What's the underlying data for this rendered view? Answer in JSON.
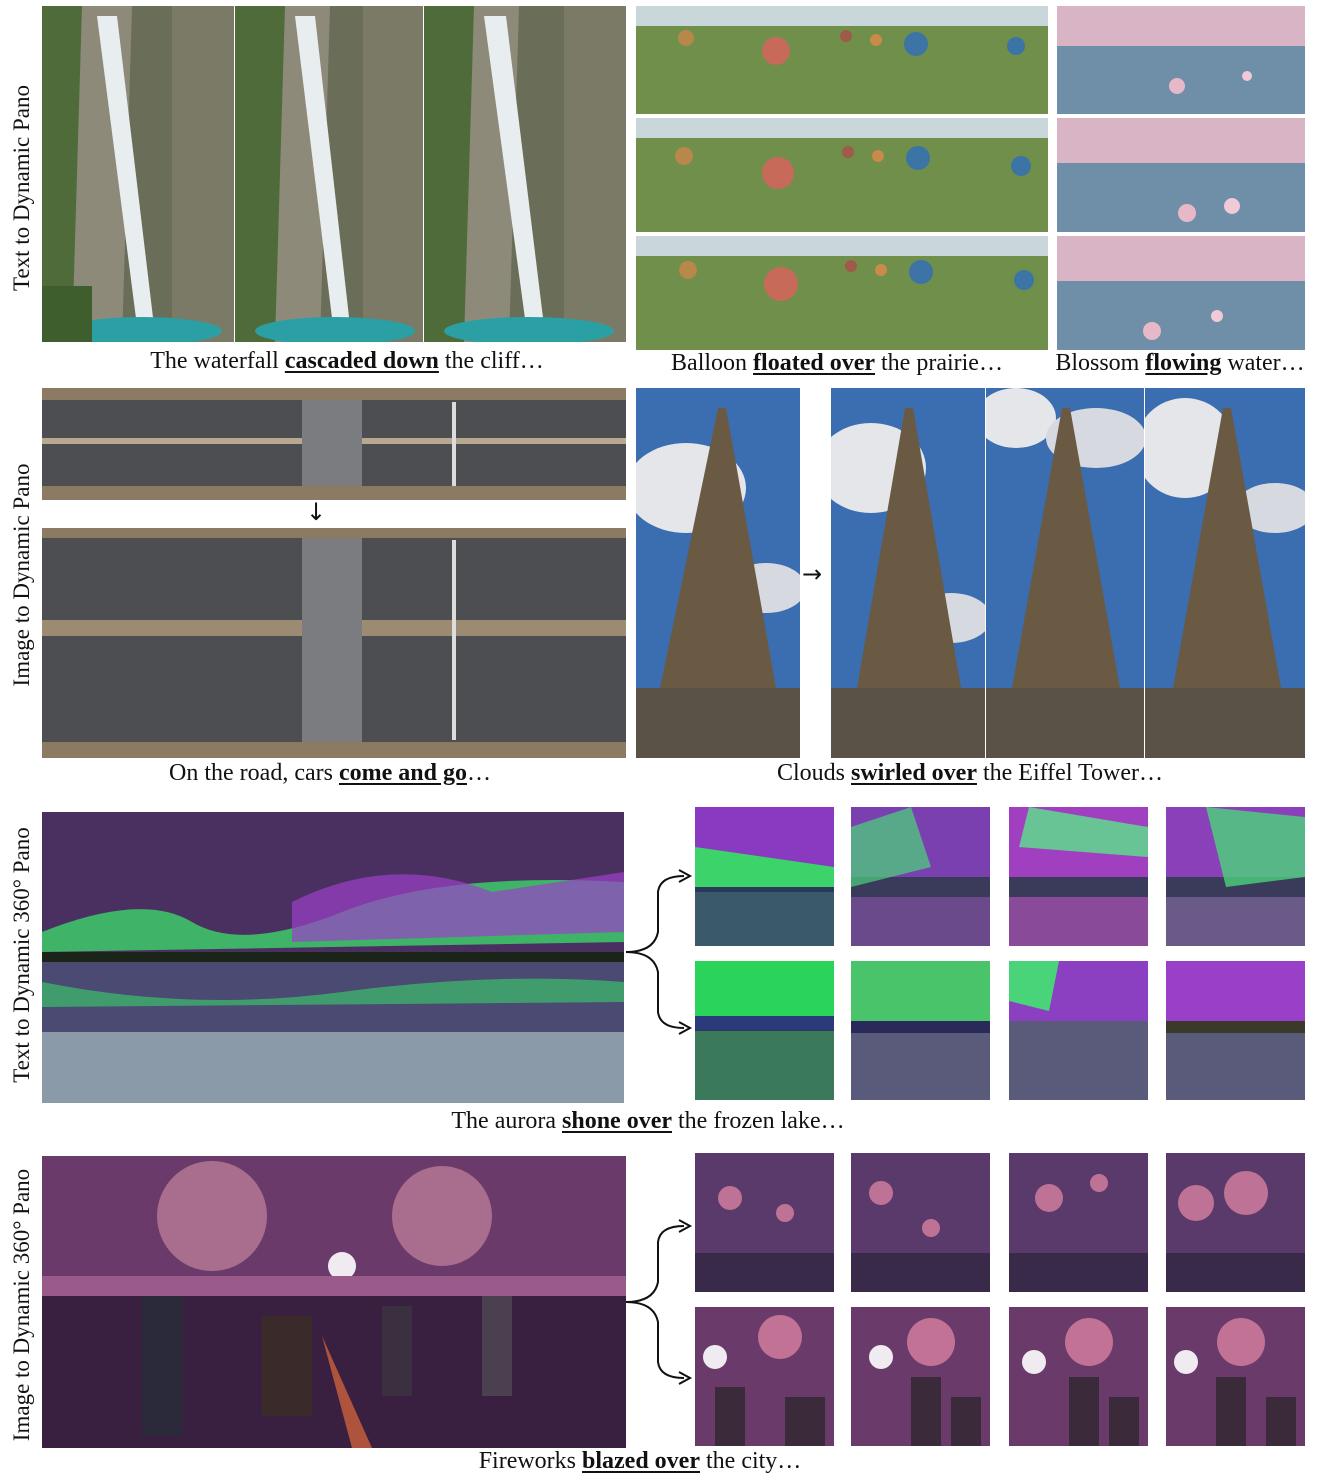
{
  "rows": [
    {
      "label": "Text to Dynamic Pano"
    },
    {
      "label": "Image to Dynamic Pano"
    },
    {
      "label": "Text to Dynamic 360° Pano"
    },
    {
      "label": "Image to Dynamic 360° Pano"
    }
  ],
  "captions": {
    "waterfall": {
      "pre": "The waterfall ",
      "bold": "cascaded down",
      "post": " the cliff…"
    },
    "balloon": {
      "pre": "Balloon ",
      "bold": "floated over",
      "post": " the prairie…"
    },
    "blossom": {
      "pre": "Blossom ",
      "bold": "flowing",
      "post": " water…"
    },
    "road": {
      "pre": "On the road, cars ",
      "bold": "come and go",
      "post": "…"
    },
    "eiffel": {
      "pre": "Clouds ",
      "bold": "swirled over",
      "post": " the Eiffel Tower…"
    },
    "aurora": {
      "pre": "The aurora ",
      "bold": "shone over",
      "post": " the frozen lake…"
    },
    "fireworks": {
      "pre": "Fireworks ",
      "bold": "blazed over",
      "post": " the city…"
    }
  },
  "arrows": {
    "down": "↓",
    "right": "→"
  }
}
